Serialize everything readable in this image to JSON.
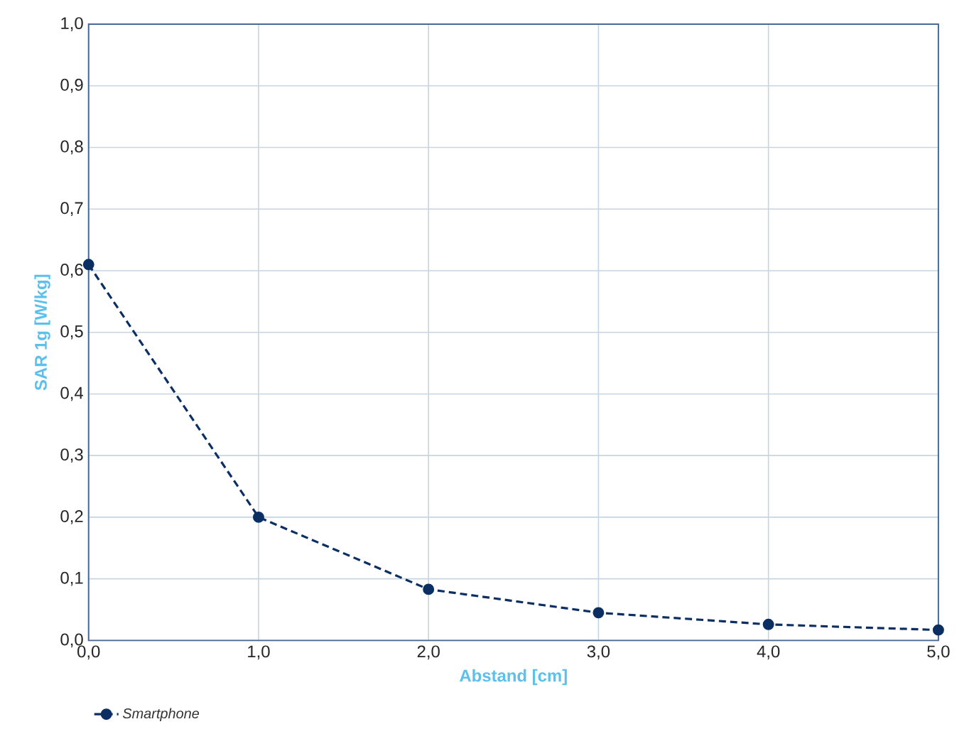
{
  "chart_data": {
    "type": "line",
    "xlabel": "Abstand [cm]",
    "ylabel": "SAR 1g [W/kg]",
    "x": [
      0,
      1,
      2,
      3,
      4,
      5
    ],
    "series": [
      {
        "name": "Smartphone",
        "color": "#0b2f63",
        "values": [
          0.61,
          0.2,
          0.083,
          0.045,
          0.026,
          0.017
        ]
      }
    ],
    "xlim": [
      0,
      5
    ],
    "ylim": [
      0,
      1
    ],
    "xticks": [
      {
        "value": 0,
        "label": "0,0"
      },
      {
        "value": 1,
        "label": "1,0"
      },
      {
        "value": 2,
        "label": "2,0"
      },
      {
        "value": 3,
        "label": "3,0"
      },
      {
        "value": 4,
        "label": "4,0"
      },
      {
        "value": 5,
        "label": "5,0"
      }
    ],
    "yticks": [
      {
        "value": 0,
        "label": "0,0"
      },
      {
        "value": 0.1,
        "label": "0,1"
      },
      {
        "value": 0.2,
        "label": "0,2"
      },
      {
        "value": 0.3,
        "label": "0,3"
      },
      {
        "value": 0.4,
        "label": "0,4"
      },
      {
        "value": 0.5,
        "label": "0,5"
      },
      {
        "value": 0.6,
        "label": "0,6"
      },
      {
        "value": 0.7,
        "label": "0,7"
      },
      {
        "value": 0.8,
        "label": "0,8"
      },
      {
        "value": 0.9,
        "label": "0,9"
      },
      {
        "value": 1,
        "label": "1,0"
      }
    ],
    "grid": true,
    "legend": "bottom left",
    "marker": "circle",
    "line_style": "dashed"
  }
}
